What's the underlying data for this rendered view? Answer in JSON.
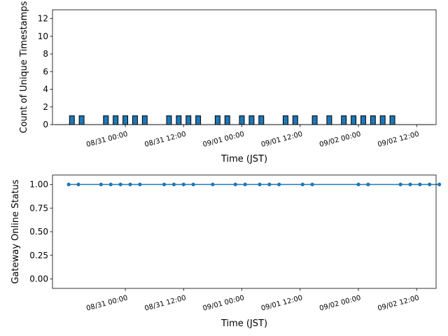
{
  "chart_data": [
    {
      "type": "bar",
      "xlabel": "Time (JST)",
      "ylabel": "Count of Unique Timestamps",
      "ylim": [
        0,
        13
      ],
      "yticks": [
        "0",
        "2",
        "4",
        "6",
        "8",
        "10",
        "12"
      ],
      "xticks": [
        "08/31 00:00",
        "08/31 12:00",
        "09/01 00:00",
        "09/01 12:00",
        "09/02 00:00",
        "09/02 12:00"
      ],
      "x_range": [
        "08/30 09:00",
        "09/02 16:00"
      ],
      "bar_width_hours": 1,
      "color": "#1f77b4",
      "edgecolor": "#000000",
      "bars": [
        {
          "x": "08/30 13:00",
          "value": 1
        },
        {
          "x": "08/30 15:00",
          "value": 1
        },
        {
          "x": "08/30 20:00",
          "value": 1
        },
        {
          "x": "08/30 22:00",
          "value": 1
        },
        {
          "x": "08/31 00:00",
          "value": 1
        },
        {
          "x": "08/31 02:00",
          "value": 1
        },
        {
          "x": "08/31 04:00",
          "value": 1
        },
        {
          "x": "08/31 09:00",
          "value": 1
        },
        {
          "x": "08/31 11:00",
          "value": 1
        },
        {
          "x": "08/31 13:00",
          "value": 1
        },
        {
          "x": "08/31 15:00",
          "value": 1
        },
        {
          "x": "08/31 19:00",
          "value": 1
        },
        {
          "x": "08/31 21:00",
          "value": 1
        },
        {
          "x": "09/01 00:00",
          "value": 1
        },
        {
          "x": "09/01 02:00",
          "value": 1
        },
        {
          "x": "09/01 04:00",
          "value": 1
        },
        {
          "x": "09/01 09:00",
          "value": 1
        },
        {
          "x": "09/01 11:00",
          "value": 1
        },
        {
          "x": "09/01 15:00",
          "value": 1
        },
        {
          "x": "09/01 18:00",
          "value": 1
        },
        {
          "x": "09/01 21:00",
          "value": 1
        },
        {
          "x": "09/01 23:00",
          "value": 1
        },
        {
          "x": "09/02 01:00",
          "value": 1
        },
        {
          "x": "09/02 03:00",
          "value": 1
        },
        {
          "x": "09/02 05:00",
          "value": 1
        },
        {
          "x": "09/02 07:00",
          "value": 1
        }
      ]
    },
    {
      "type": "line",
      "xlabel": "Time (JST)",
      "ylabel": "Gateway Online Status",
      "ylim": [
        -0.1,
        1.1
      ],
      "yticks": [
        "0.00",
        "0.25",
        "0.50",
        "0.75",
        "1.00"
      ],
      "xticks": [
        "08/31 00:00",
        "08/31 12:00",
        "09/01 00:00",
        "09/01 12:00",
        "09/02 00:00",
        "09/02 12:00"
      ],
      "x_range": [
        "08/30 09:00",
        "09/02 16:00"
      ],
      "color": "#1f77b4",
      "marker": "circle",
      "points": [
        {
          "x": "08/30 12:20",
          "y": 1
        },
        {
          "x": "08/30 14:20",
          "y": 1
        },
        {
          "x": "08/30 19:00",
          "y": 1
        },
        {
          "x": "08/30 21:00",
          "y": 1
        },
        {
          "x": "08/30 23:00",
          "y": 1
        },
        {
          "x": "08/31 01:00",
          "y": 1
        },
        {
          "x": "08/31 03:00",
          "y": 1
        },
        {
          "x": "08/31 08:00",
          "y": 1
        },
        {
          "x": "08/31 10:00",
          "y": 1
        },
        {
          "x": "08/31 12:00",
          "y": 1
        },
        {
          "x": "08/31 14:00",
          "y": 1
        },
        {
          "x": "08/31 18:00",
          "y": 1
        },
        {
          "x": "08/31 22:40",
          "y": 1
        },
        {
          "x": "09/01 00:40",
          "y": 1
        },
        {
          "x": "09/01 03:40",
          "y": 1
        },
        {
          "x": "09/01 05:40",
          "y": 1
        },
        {
          "x": "09/01 07:40",
          "y": 1
        },
        {
          "x": "09/01 12:30",
          "y": 1
        },
        {
          "x": "09/01 14:30",
          "y": 1
        },
        {
          "x": "09/02 00:00",
          "y": 1
        },
        {
          "x": "09/02 02:00",
          "y": 1
        },
        {
          "x": "09/02 08:40",
          "y": 1
        },
        {
          "x": "09/02 10:40",
          "y": 1
        },
        {
          "x": "09/02 12:40",
          "y": 1
        },
        {
          "x": "09/02 14:40",
          "y": 1
        },
        {
          "x": "09/02 16:40",
          "y": 1
        }
      ]
    }
  ]
}
